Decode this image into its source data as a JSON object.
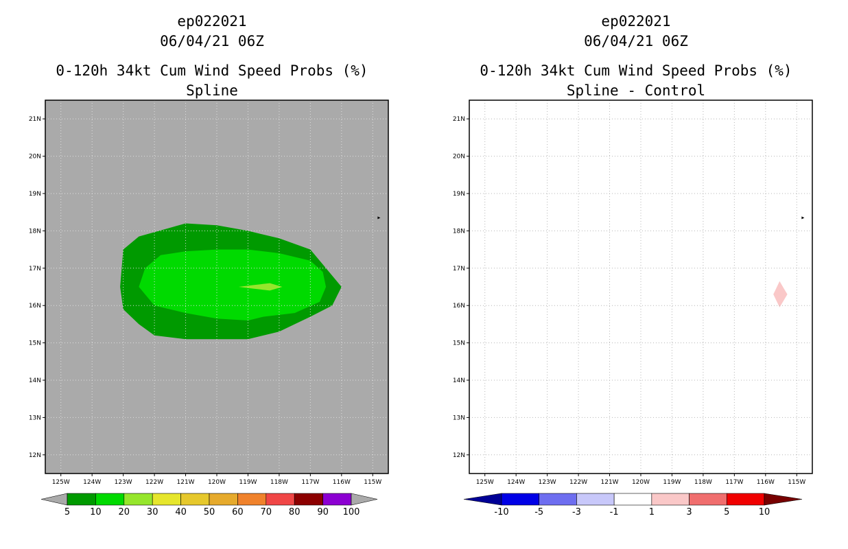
{
  "chart_data": [
    {
      "type": "filled-contour-map",
      "title": "ep022021",
      "subtitle": "06/04/21 06Z",
      "heading": "0-120h 34kt Cum Wind Speed Probs (%)",
      "method": "Spline",
      "xlabel": "",
      "ylabel": "",
      "x_ticks": [
        "125W",
        "124W",
        "123W",
        "122W",
        "121W",
        "120W",
        "119W",
        "118W",
        "117W",
        "116W",
        "115W"
      ],
      "y_ticks": [
        "21N",
        "20N",
        "19N",
        "18N",
        "17N",
        "16N",
        "15N",
        "14N",
        "13N",
        "12N"
      ],
      "xlim_lon": [
        -125.5,
        -114.5
      ],
      "ylim_lat": [
        11.5,
        21.5
      ],
      "background_color": "#aaaaaa",
      "marker_lonlat": [
        -114.8,
        18.35
      ],
      "regions": [
        {
          "level": "5-10",
          "color": "#009a00",
          "outline_lonlat": [
            [
              -123.0,
              17.5
            ],
            [
              -122.5,
              17.85
            ],
            [
              -121.0,
              18.2
            ],
            [
              -120.0,
              18.15
            ],
            [
              -119.0,
              18.0
            ],
            [
              -118.0,
              17.8
            ],
            [
              -117.0,
              17.5
            ],
            [
              -116.5,
              17.0
            ],
            [
              -116.0,
              16.5
            ],
            [
              -116.3,
              16.0
            ],
            [
              -117.0,
              15.7
            ],
            [
              -117.5,
              15.5
            ],
            [
              -118.0,
              15.3
            ],
            [
              -119.0,
              15.1
            ],
            [
              -120.0,
              15.1
            ],
            [
              -121.0,
              15.1
            ],
            [
              -122.0,
              15.2
            ],
            [
              -122.5,
              15.5
            ],
            [
              -123.0,
              15.9
            ],
            [
              -123.1,
              16.5
            ],
            [
              -123.0,
              17.5
            ]
          ]
        },
        {
          "level": "10-20",
          "color": "#00da00",
          "outline_lonlat": [
            [
              -122.5,
              16.5
            ],
            [
              -122.3,
              17.0
            ],
            [
              -121.8,
              17.35
            ],
            [
              -121.0,
              17.45
            ],
            [
              -120.0,
              17.5
            ],
            [
              -119.0,
              17.5
            ],
            [
              -118.0,
              17.4
            ],
            [
              -117.0,
              17.2
            ],
            [
              -116.6,
              16.9
            ],
            [
              -116.5,
              16.5
            ],
            [
              -116.7,
              16.1
            ],
            [
              -117.5,
              15.8
            ],
            [
              -118.5,
              15.7
            ],
            [
              -119.0,
              15.6
            ],
            [
              -120.0,
              15.65
            ],
            [
              -121.0,
              15.8
            ],
            [
              -122.0,
              16.0
            ],
            [
              -122.5,
              16.5
            ]
          ]
        },
        {
          "level": "20-30",
          "color": "#96e62c",
          "outline_lonlat": [
            [
              -119.3,
              16.5
            ],
            [
              -118.8,
              16.55
            ],
            [
              -118.3,
              16.6
            ],
            [
              -117.9,
              16.5
            ],
            [
              -118.3,
              16.4
            ],
            [
              -118.8,
              16.45
            ],
            [
              -119.3,
              16.5
            ]
          ]
        }
      ],
      "colorbar": {
        "labels": [
          "5",
          "10",
          "20",
          "30",
          "40",
          "50",
          "60",
          "70",
          "80",
          "90",
          "100"
        ],
        "colors": [
          "#009a00",
          "#00da00",
          "#96e62c",
          "#e6e62c",
          "#e6c82c",
          "#e6aa2c",
          "#f0822c",
          "#f04646",
          "#8c0000",
          "#8c00d2"
        ],
        "end_colors": [
          "#aaaaaa",
          "#aaaaaa"
        ]
      }
    },
    {
      "type": "filled-contour-map",
      "title": "ep022021",
      "subtitle": "06/04/21 06Z",
      "heading": "0-120h 34kt Cum Wind Speed Probs (%)",
      "method": "Spline - Control",
      "xlabel": "",
      "ylabel": "",
      "x_ticks": [
        "125W",
        "124W",
        "123W",
        "122W",
        "121W",
        "120W",
        "119W",
        "118W",
        "117W",
        "116W",
        "115W"
      ],
      "y_ticks": [
        "21N",
        "20N",
        "19N",
        "18N",
        "17N",
        "16N",
        "15N",
        "14N",
        "13N",
        "12N"
      ],
      "xlim_lon": [
        -125.5,
        -114.5
      ],
      "ylim_lat": [
        11.5,
        21.5
      ],
      "background_color": "#ffffff",
      "grid": true,
      "marker_lonlat": [
        -114.8,
        18.35
      ],
      "regions": [
        {
          "level": "1-3",
          "color": "#fac8c8",
          "outline_lonlat": [
            [
              -115.55,
              16.65
            ],
            [
              -115.3,
              16.3
            ],
            [
              -115.55,
              15.95
            ],
            [
              -115.75,
              16.3
            ],
            [
              -115.55,
              16.65
            ]
          ]
        }
      ],
      "colorbar": {
        "labels": [
          "-10",
          "-5",
          "-3",
          "-1",
          "1",
          "3",
          "5",
          "10"
        ],
        "colors": [
          "#0000e6",
          "#6e6ef0",
          "#c8c8fa",
          "#ffffff",
          "#fac8c8",
          "#f06e6e",
          "#f00000"
        ],
        "end_colors": [
          "#000096",
          "#780000"
        ]
      }
    }
  ]
}
